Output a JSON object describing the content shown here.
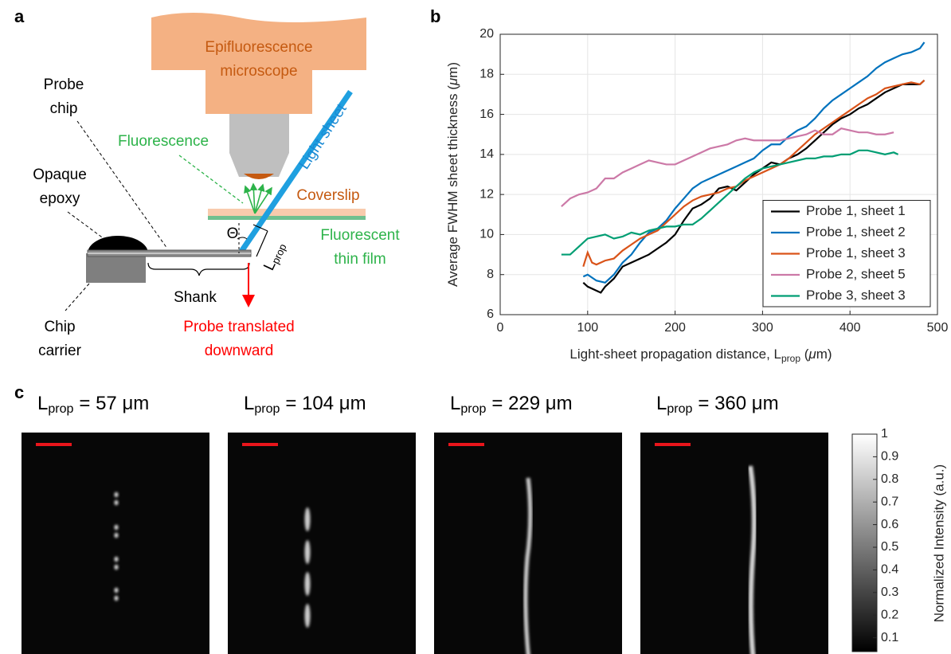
{
  "panel_labels": [
    "a",
    "b",
    "c"
  ],
  "diagram": {
    "microscope": [
      "Epifluorescence",
      "microscope"
    ],
    "light_sheet": "Light sheet",
    "fluorescence": "Fluorescence",
    "coverslip": "Coverslip",
    "probe_chip": [
      "Probe",
      "chip"
    ],
    "opaque_epoxy": [
      "Opaque",
      "epoxy"
    ],
    "thin_film": [
      "Fluorescent",
      "thin film"
    ],
    "theta": "Θ",
    "lprop": {
      "main": "L",
      "sub": "prop"
    },
    "shank": "Shank",
    "translated": [
      "Probe translated",
      "downward"
    ],
    "chip_carrier": [
      "Chip",
      "carrier"
    ]
  },
  "chart_data": {
    "type": "line",
    "ylabel": {
      "text": "Average FWHM sheet thickness (",
      "unit": "μ",
      "end": "m)"
    },
    "xlabel": {
      "text": "Light-sheet propagation distance, L",
      "sub": "prop",
      "end": " (",
      "unit": "μ",
      "end2": "m)"
    },
    "xlim": [
      0,
      500
    ],
    "xticks": [
      0,
      100,
      200,
      300,
      400,
      500
    ],
    "ylim": [
      6,
      20
    ],
    "yticks": [
      6,
      8,
      10,
      12,
      14,
      16,
      18,
      20
    ],
    "grid": true,
    "legend": "lower right",
    "series": [
      {
        "name": "Probe 1, sheet 1",
        "color": "#000000",
        "x": [
          95,
          100,
          110,
          115,
          120,
          130,
          140,
          150,
          160,
          170,
          180,
          190,
          200,
          210,
          220,
          230,
          240,
          250,
          260,
          270,
          280,
          290,
          300,
          310,
          320,
          330,
          340,
          350,
          360,
          370,
          380,
          390,
          400,
          410,
          420,
          430,
          440,
          450,
          460,
          470,
          480,
          485
        ],
        "values": [
          7.6,
          7.4,
          7.2,
          7.1,
          7.4,
          7.8,
          8.4,
          8.6,
          8.8,
          9.0,
          9.3,
          9.6,
          10.0,
          10.7,
          11.3,
          11.5,
          11.8,
          12.3,
          12.4,
          12.2,
          12.6,
          13.0,
          13.3,
          13.6,
          13.5,
          13.8,
          14.0,
          14.3,
          14.7,
          15.1,
          15.5,
          15.8,
          16.0,
          16.3,
          16.5,
          16.8,
          17.1,
          17.3,
          17.5,
          17.5,
          17.5,
          17.7
        ]
      },
      {
        "name": "Probe 1, sheet 2",
        "color": "#0072bd",
        "x": [
          95,
          100,
          110,
          120,
          130,
          140,
          150,
          160,
          170,
          180,
          190,
          200,
          210,
          220,
          230,
          240,
          250,
          260,
          270,
          280,
          290,
          300,
          310,
          320,
          330,
          340,
          350,
          360,
          370,
          380,
          390,
          400,
          410,
          420,
          430,
          440,
          450,
          460,
          470,
          480,
          485
        ],
        "values": [
          7.9,
          8.0,
          7.7,
          7.6,
          8.0,
          8.6,
          9.0,
          9.6,
          10.1,
          10.3,
          10.7,
          11.3,
          11.8,
          12.3,
          12.6,
          12.8,
          13.0,
          13.2,
          13.4,
          13.6,
          13.8,
          14.2,
          14.5,
          14.5,
          14.9,
          15.2,
          15.4,
          15.8,
          16.3,
          16.7,
          17.0,
          17.3,
          17.6,
          17.9,
          18.3,
          18.6,
          18.8,
          19.0,
          19.1,
          19.3,
          19.6
        ]
      },
      {
        "name": "Probe 1, sheet 3",
        "color": "#d95319",
        "x": [
          95,
          100,
          105,
          110,
          120,
          130,
          140,
          150,
          160,
          170,
          180,
          190,
          200,
          210,
          220,
          230,
          240,
          250,
          260,
          270,
          280,
          290,
          300,
          310,
          320,
          330,
          340,
          350,
          360,
          370,
          380,
          390,
          400,
          410,
          420,
          430,
          440,
          450,
          460,
          470,
          480,
          485
        ],
        "values": [
          8.4,
          9.1,
          8.6,
          8.5,
          8.7,
          8.8,
          9.2,
          9.5,
          9.8,
          10.0,
          10.2,
          10.6,
          11.0,
          11.4,
          11.7,
          11.9,
          12.0,
          12.1,
          12.3,
          12.4,
          12.7,
          12.9,
          13.1,
          13.3,
          13.5,
          13.8,
          14.2,
          14.6,
          15.0,
          15.3,
          15.6,
          15.9,
          16.2,
          16.5,
          16.8,
          17.0,
          17.3,
          17.4,
          17.5,
          17.6,
          17.5,
          17.7
        ]
      },
      {
        "name": "Probe 2, sheet 5",
        "color": "#cc79a7",
        "x": [
          70,
          80,
          90,
          100,
          110,
          120,
          130,
          140,
          150,
          160,
          170,
          180,
          190,
          200,
          210,
          220,
          230,
          240,
          250,
          260,
          270,
          280,
          290,
          300,
          310,
          320,
          330,
          340,
          350,
          360,
          370,
          380,
          390,
          400,
          410,
          420,
          430,
          440,
          450
        ],
        "values": [
          11.4,
          11.8,
          12.0,
          12.1,
          12.3,
          12.8,
          12.8,
          13.1,
          13.3,
          13.5,
          13.7,
          13.6,
          13.5,
          13.5,
          13.7,
          13.9,
          14.1,
          14.3,
          14.4,
          14.5,
          14.7,
          14.8,
          14.7,
          14.7,
          14.7,
          14.7,
          14.8,
          14.9,
          15.0,
          15.2,
          15.0,
          15.0,
          15.3,
          15.2,
          15.1,
          15.1,
          15.0,
          15.0,
          15.1
        ]
      },
      {
        "name": "Probe 3, sheet 3",
        "color": "#009e73",
        "x": [
          70,
          80,
          90,
          100,
          110,
          120,
          130,
          140,
          150,
          160,
          170,
          180,
          190,
          200,
          210,
          220,
          230,
          240,
          250,
          260,
          270,
          280,
          290,
          300,
          310,
          320,
          330,
          340,
          350,
          360,
          370,
          380,
          390,
          400,
          410,
          420,
          430,
          440,
          450,
          455
        ],
        "values": [
          9.0,
          9.0,
          9.4,
          9.8,
          9.9,
          10.0,
          9.8,
          9.9,
          10.1,
          10.0,
          10.2,
          10.3,
          10.4,
          10.4,
          10.5,
          10.5,
          10.8,
          11.2,
          11.6,
          12.0,
          12.4,
          12.8,
          13.1,
          13.3,
          13.4,
          13.5,
          13.6,
          13.7,
          13.8,
          13.8,
          13.9,
          13.9,
          14.0,
          14.0,
          14.2,
          14.2,
          14.1,
          14.0,
          14.1,
          14.0
        ]
      }
    ]
  },
  "images": [
    {
      "main": "L",
      "sub": "prop",
      "rest": "= 57 μm"
    },
    {
      "main": "L",
      "sub": "prop",
      "rest": "= 104 μm"
    },
    {
      "main": "L",
      "sub": "prop",
      "rest": "= 229 μm"
    },
    {
      "main": "L",
      "sub": "prop",
      "rest": "= 360 μm"
    }
  ],
  "colorbar": {
    "label": "Normalized Intensity (a.u.)",
    "lim": [
      0,
      1
    ],
    "ticks": [
      0.1,
      0.2,
      0.3,
      0.4,
      0.5,
      0.6,
      0.7,
      0.8,
      0.9,
      1
    ]
  }
}
